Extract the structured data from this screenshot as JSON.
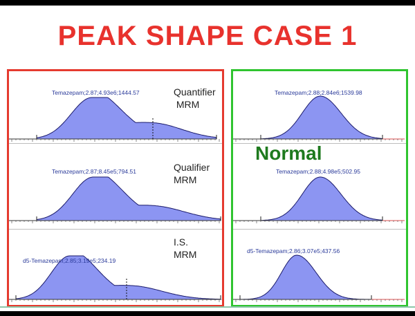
{
  "title": "PEAK SHAPE CASE 1",
  "normal_label": "Normal",
  "colors": {
    "title": "#e8322d",
    "left_border": "#e53a2f",
    "right_border": "#2fc42f",
    "peak_fill": "#8c95f2",
    "peak_stroke": "#1a1a6a",
    "normal_text": "#1e7a1e",
    "baseline_red": "#e07070"
  },
  "chart_data": [
    {
      "type": "area",
      "panel": "left",
      "row": 1,
      "label": "Temazepam;2.87;4.93e6;1444.57",
      "side_label": [
        "Quantifier",
        " MRM"
      ],
      "shape": "tailing",
      "peak_x": 2.87
    },
    {
      "type": "area",
      "panel": "left",
      "row": 2,
      "label": "Temazepam;2.87;8.45e5;794.51",
      "side_label": [
        "Qualifier",
        "MRM"
      ],
      "shape": "tailing",
      "peak_x": 2.87
    },
    {
      "type": "area",
      "panel": "left",
      "row": 3,
      "label": "d5-Temazepam;2.85;3.19e5;234.19",
      "side_label": [
        "I.S.",
        "MRM"
      ],
      "shape": "tailing",
      "peak_x": 2.85
    },
    {
      "type": "area",
      "panel": "right",
      "row": 1,
      "label": "Temazepam;2.88;2.84e6;1539.98",
      "shape": "gaussian",
      "peak_x": 2.88
    },
    {
      "type": "area",
      "panel": "right",
      "row": 2,
      "label": "Temazepam;2.88;4.98e5;502.95",
      "shape": "gaussian",
      "peak_x": 2.88
    },
    {
      "type": "area",
      "panel": "right",
      "row": 3,
      "label": "d5-Temazepam;2.86;3.07e5;437.56",
      "shape": "gaussian",
      "peak_x": 2.86
    }
  ]
}
